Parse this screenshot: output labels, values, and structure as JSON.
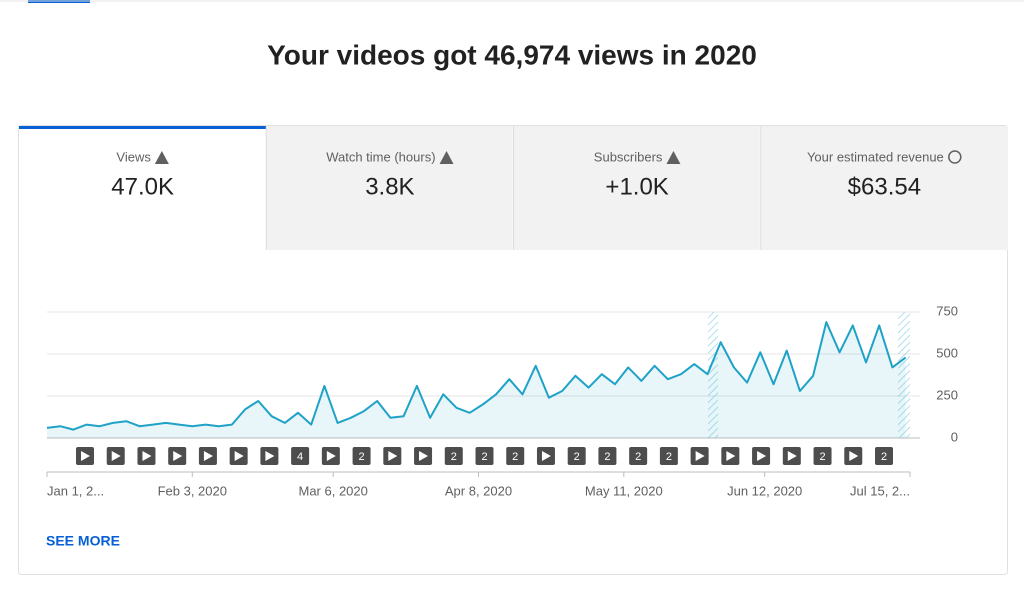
{
  "header": {
    "title": "Your videos got 46,974 views in 2020"
  },
  "tabs": [
    {
      "label": "Views",
      "value": "47.0K"
    },
    {
      "label": "Watch time (hours)",
      "value": "3.8K"
    },
    {
      "label": "Subscribers",
      "value": "+1.0K"
    },
    {
      "label": "Your estimated revenue",
      "value": "$63.54"
    }
  ],
  "chart_data": {
    "type": "line",
    "color": "#1ea2c8",
    "x": [
      0,
      3,
      6,
      9,
      12,
      15,
      18,
      21,
      24,
      27,
      30,
      33,
      36,
      39,
      42,
      45,
      48,
      51,
      54,
      57,
      60,
      63,
      66,
      69,
      72,
      75,
      78,
      81,
      84,
      87,
      90,
      93,
      96,
      99,
      102,
      105,
      108,
      111,
      114,
      117,
      120,
      123,
      126,
      129,
      132,
      135,
      138,
      141,
      144,
      147,
      150,
      153,
      156,
      159,
      162,
      165,
      168,
      171,
      174,
      177,
      180,
      183,
      186,
      189,
      192,
      195
    ],
    "values": [
      60,
      70,
      50,
      80,
      70,
      90,
      100,
      70,
      80,
      90,
      80,
      70,
      80,
      70,
      80,
      170,
      220,
      130,
      90,
      150,
      80,
      310,
      90,
      120,
      160,
      220,
      120,
      130,
      310,
      120,
      260,
      180,
      150,
      200,
      260,
      350,
      260,
      430,
      240,
      280,
      370,
      300,
      380,
      320,
      420,
      340,
      430,
      350,
      380,
      440,
      380,
      570,
      420,
      330,
      510,
      320,
      520,
      280,
      370,
      690,
      510,
      670,
      450,
      670,
      420,
      480
    ],
    "xlim": [
      0,
      196
    ],
    "xticks": [
      {
        "value": 0,
        "label": "Jan 1, 2..."
      },
      {
        "value": 33,
        "label": "Feb 3, 2020"
      },
      {
        "value": 65,
        "label": "Mar 6, 2020"
      },
      {
        "value": 98,
        "label": "Apr 8, 2020"
      },
      {
        "value": 131,
        "label": "May 11, 2020"
      },
      {
        "value": 163,
        "label": "Jun 12, 2020"
      },
      {
        "value": 196,
        "label": "Jul 15, 2..."
      }
    ],
    "ylim": [
      0,
      750
    ],
    "yticks": [
      0,
      250,
      500,
      750
    ],
    "grid": true,
    "video_markers": [
      null,
      null,
      null,
      null,
      null,
      null,
      null,
      "4",
      null,
      "2",
      null,
      null,
      "2",
      "2",
      "2",
      null,
      "2",
      "2",
      "2",
      "2",
      null,
      null,
      null,
      null,
      "2",
      null,
      "2"
    ]
  },
  "footer": {
    "link": "SEE MORE"
  }
}
